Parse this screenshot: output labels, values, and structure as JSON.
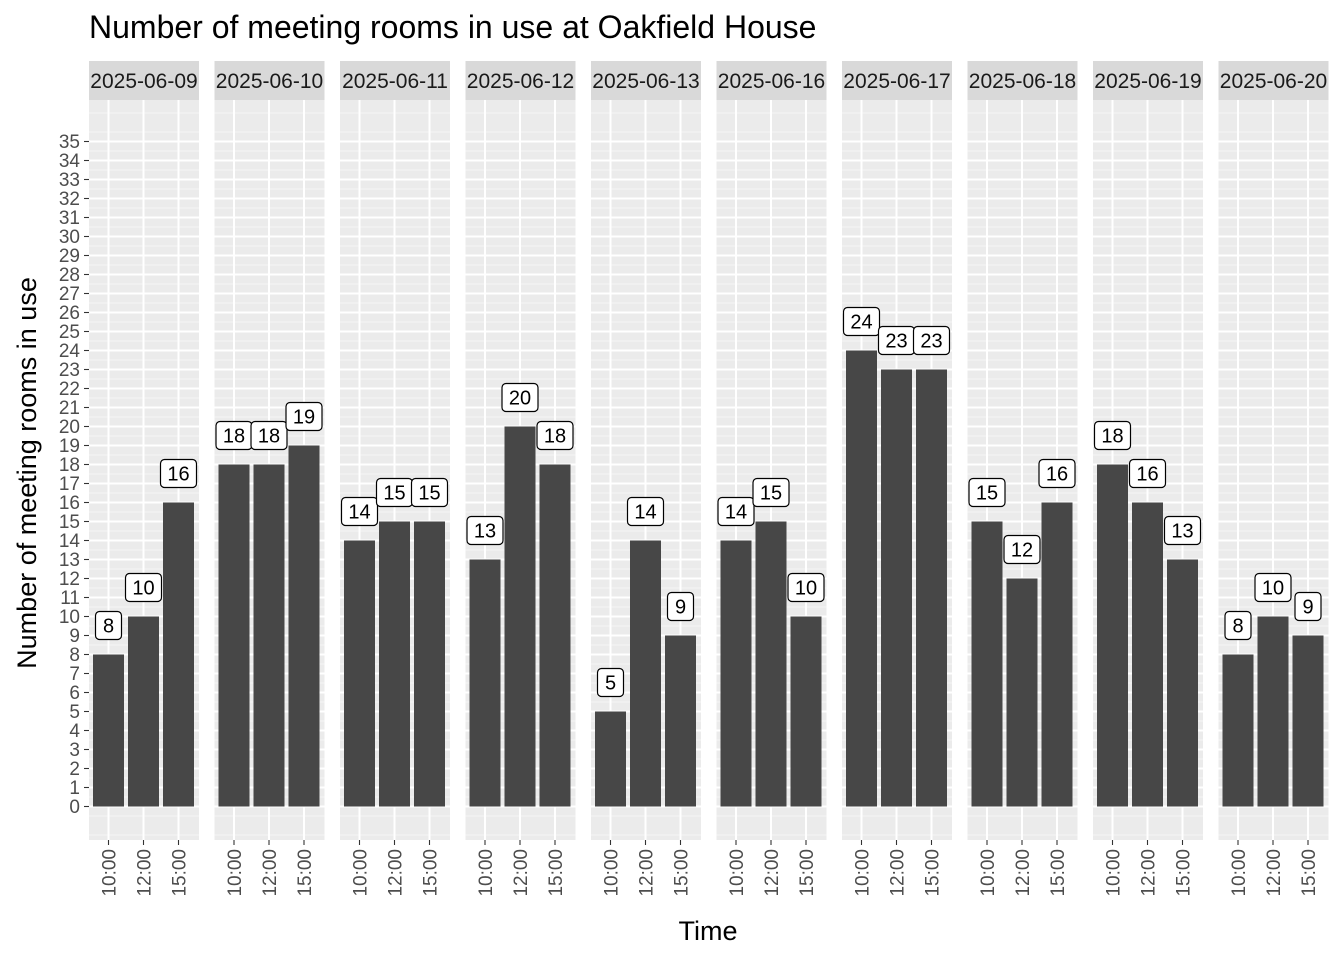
{
  "chart_data": {
    "type": "bar",
    "title": "Number of meeting rooms in use at Oakfield House",
    "xlabel": "Time",
    "ylabel": "Number of meeting rooms in use",
    "ylim": [
      0,
      35
    ],
    "y_ticks": [
      0,
      1,
      2,
      3,
      4,
      5,
      6,
      7,
      8,
      9,
      10,
      11,
      12,
      13,
      14,
      15,
      16,
      17,
      18,
      19,
      20,
      21,
      22,
      23,
      24,
      25,
      26,
      27,
      28,
      29,
      30,
      31,
      32,
      33,
      34,
      35
    ],
    "categories": [
      "10:00",
      "12:00",
      "15:00"
    ],
    "grid": true,
    "bar_color": "#474747",
    "facets": [
      {
        "label": "2025-06-09",
        "values": [
          8,
          10,
          16
        ]
      },
      {
        "label": "2025-06-10",
        "values": [
          18,
          18,
          19
        ]
      },
      {
        "label": "2025-06-11",
        "values": [
          14,
          15,
          15
        ]
      },
      {
        "label": "2025-06-12",
        "values": [
          13,
          20,
          18
        ]
      },
      {
        "label": "2025-06-13",
        "values": [
          5,
          14,
          9
        ]
      },
      {
        "label": "2025-06-16",
        "values": [
          14,
          15,
          10
        ]
      },
      {
        "label": "2025-06-17",
        "values": [
          24,
          23,
          23
        ]
      },
      {
        "label": "2025-06-18",
        "values": [
          15,
          12,
          16
        ]
      },
      {
        "label": "2025-06-19",
        "values": [
          18,
          16,
          13
        ]
      },
      {
        "label": "2025-06-20",
        "values": [
          8,
          10,
          9
        ]
      }
    ]
  }
}
